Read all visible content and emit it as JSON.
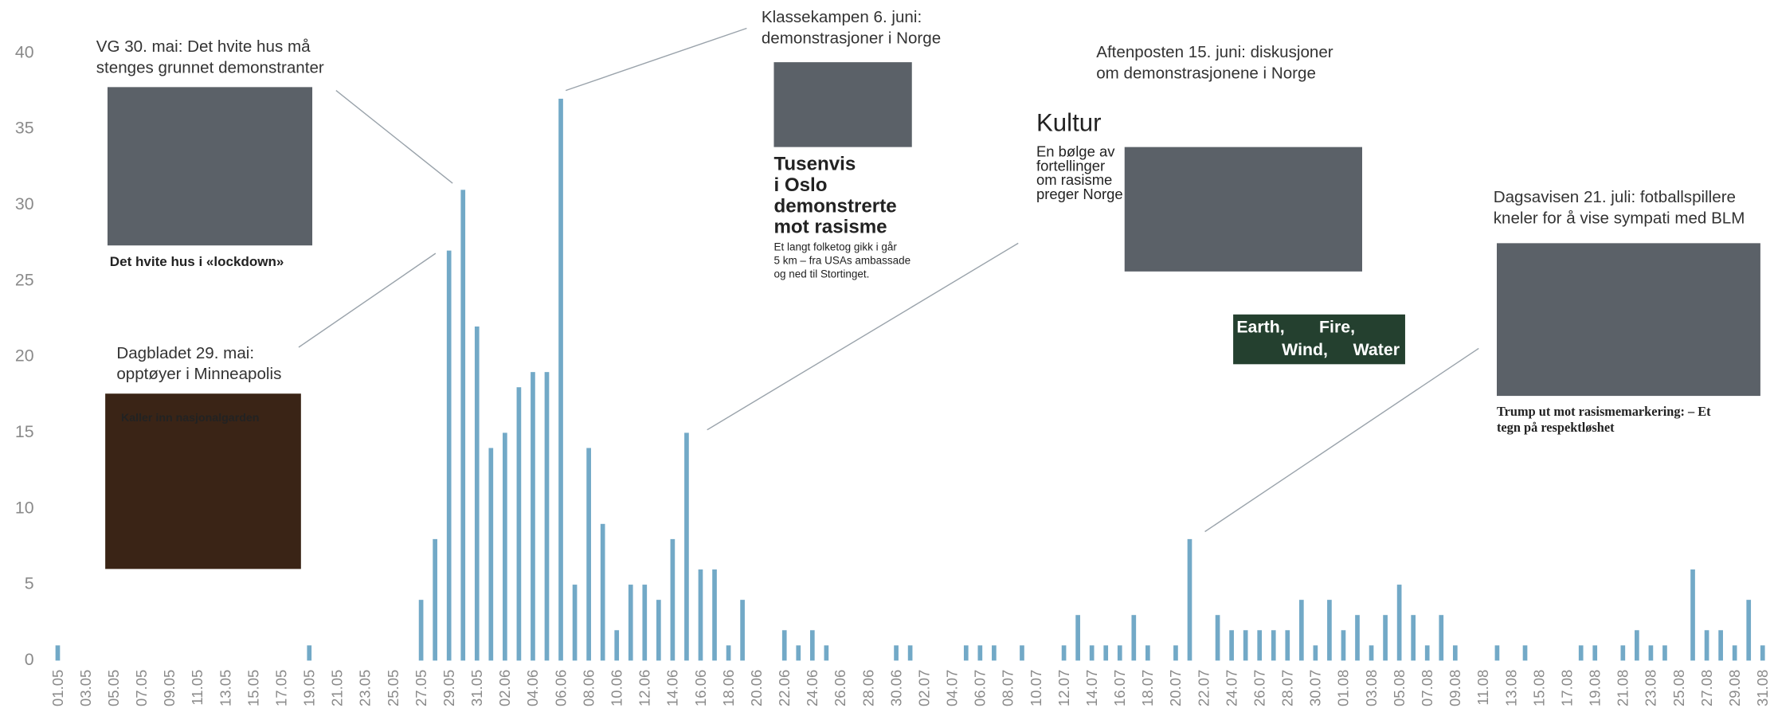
{
  "chart_data": {
    "type": "bar",
    "color": "#72a9c7",
    "categories": [
      "01.05",
      null,
      "03.05",
      null,
      "05.05",
      null,
      "07.05",
      null,
      "09.05",
      null,
      "11.05",
      null,
      "13.05",
      null,
      "15.05",
      null,
      "17.05",
      null,
      "19.05",
      null,
      "21.05",
      null,
      "23.05",
      null,
      "25.05",
      null,
      "27.05",
      null,
      "29.05",
      null,
      "31.05",
      null,
      "02.06",
      null,
      "04.06",
      null,
      "06.06",
      null,
      "08.06",
      null,
      "10.06",
      null,
      "12.06",
      null,
      "14.06",
      null,
      "16.06",
      null,
      "18.06",
      null,
      "20.06",
      null,
      "22.06",
      null,
      "24.06",
      null,
      "26.06",
      null,
      "28.06",
      null,
      "30.06",
      null,
      "02.07",
      null,
      "04.07",
      null,
      "06.07",
      null,
      "08.07",
      null,
      "10.07",
      null,
      "12.07",
      null,
      "14.07",
      null,
      "16.07",
      null,
      "18.07",
      null,
      "20.07",
      null,
      "22.07",
      null,
      "24.07",
      null,
      "26.07",
      null,
      "28.07",
      null,
      "30.07",
      null,
      "01.08",
      null,
      "03.08",
      null,
      "05.08",
      null,
      "07.08",
      null,
      "09.08",
      null,
      "11.08",
      null,
      "13.08",
      null,
      "15.08",
      null,
      "17.08",
      null,
      "19.08",
      null,
      "21.08",
      null,
      "23.08",
      null,
      "25.08",
      null,
      "27.08",
      null,
      "29.08",
      null,
      "31.08"
    ],
    "values": [
      1,
      0,
      0,
      0,
      0,
      0,
      0,
      0,
      0,
      0,
      0,
      0,
      0,
      0,
      0,
      0,
      0,
      0,
      1,
      0,
      0,
      0,
      0,
      0,
      0,
      0,
      4,
      8,
      27,
      31,
      22,
      14,
      15,
      18,
      19,
      19,
      37,
      5,
      14,
      9,
      2,
      5,
      5,
      4,
      8,
      15,
      6,
      6,
      1,
      4,
      0,
      0,
      2,
      1,
      2,
      1,
      0,
      0,
      0,
      0,
      1,
      1,
      0,
      0,
      0,
      1,
      1,
      1,
      0,
      1,
      0,
      0,
      1,
      3,
      1,
      1,
      1,
      3,
      1,
      0,
      1,
      8,
      0,
      3,
      2,
      2,
      2,
      2,
      2,
      4,
      1,
      4,
      2,
      3,
      1,
      3,
      5,
      3,
      1,
      3,
      1,
      0,
      0,
      1,
      0,
      1,
      0,
      0,
      0,
      1,
      1,
      0,
      1,
      2,
      1,
      1,
      0,
      6,
      2,
      2,
      1,
      4,
      1
    ],
    "ylim": [
      0,
      40
    ],
    "yticks": [
      0,
      5,
      10,
      15,
      20,
      25,
      30,
      35,
      40
    ],
    "annotations": [
      {
        "lines": [
          "VG 30. mai: Det hvite hus må",
          "stenges grunnet demonstranter"
        ],
        "image_text": [
          "Det hvite hus i «lockdown»"
        ]
      },
      {
        "lines": [
          "Dagbladet 29. mai:",
          "opptøyer i Minneapolis"
        ],
        "image_text": [
          "Kaller inn nasjonalgarden"
        ]
      },
      {
        "lines": [
          "Klassekampen 6. juni:",
          "demonstrasjoner i Norge"
        ],
        "image_text": [
          "Tusenvis",
          "i Oslo",
          "demonstrerte",
          "mot rasisme",
          "Et langt folketog gikk i går",
          "5 km – fra USAs ambassade",
          "og ned til Stortinget."
        ]
      },
      {
        "lines": [
          "Aftenposten 15. juni: diskusjoner",
          "om demonstrasjonene i Norge"
        ],
        "image_text": [
          "Kultur",
          "En bølge av",
          "fortellinger",
          "om rasisme",
          "preger Norge",
          "Earth,",
          "Fire,",
          "Wind,",
          "Water"
        ]
      },
      {
        "lines": [
          "Dagsavisen 21. juli: fotballspillere",
          "kneler for å vise sympati med BLM"
        ],
        "image_text": [
          "Trump ut mot rasismemarkering: – Et",
          "tegn på respektløshet"
        ]
      }
    ]
  }
}
